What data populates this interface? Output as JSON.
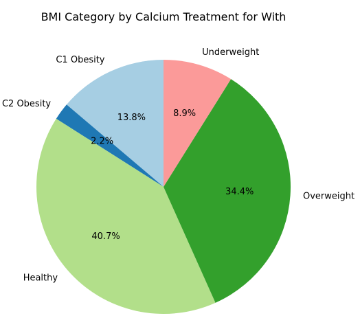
{
  "chart_data": {
    "type": "pie",
    "title": "BMI Category by Calcium Treatment for With",
    "slices": [
      {
        "label": "C1 Obesity",
        "value": 13.8,
        "pct_label": "13.8%",
        "color": "#a6cee3"
      },
      {
        "label": "C2 Obesity",
        "value": 2.2,
        "pct_label": "2.2%",
        "color": "#1f78b4"
      },
      {
        "label": "Healthy",
        "value": 40.7,
        "pct_label": "40.7%",
        "color": "#b2df8a"
      },
      {
        "label": "Overweight",
        "value": 34.4,
        "pct_label": "34.4%",
        "color": "#33a02c"
      },
      {
        "label": "Underweight",
        "value": 8.9,
        "pct_label": "8.9%",
        "color": "#fb9a99"
      }
    ],
    "start_angle": "top",
    "direction": "counterclockwise"
  }
}
